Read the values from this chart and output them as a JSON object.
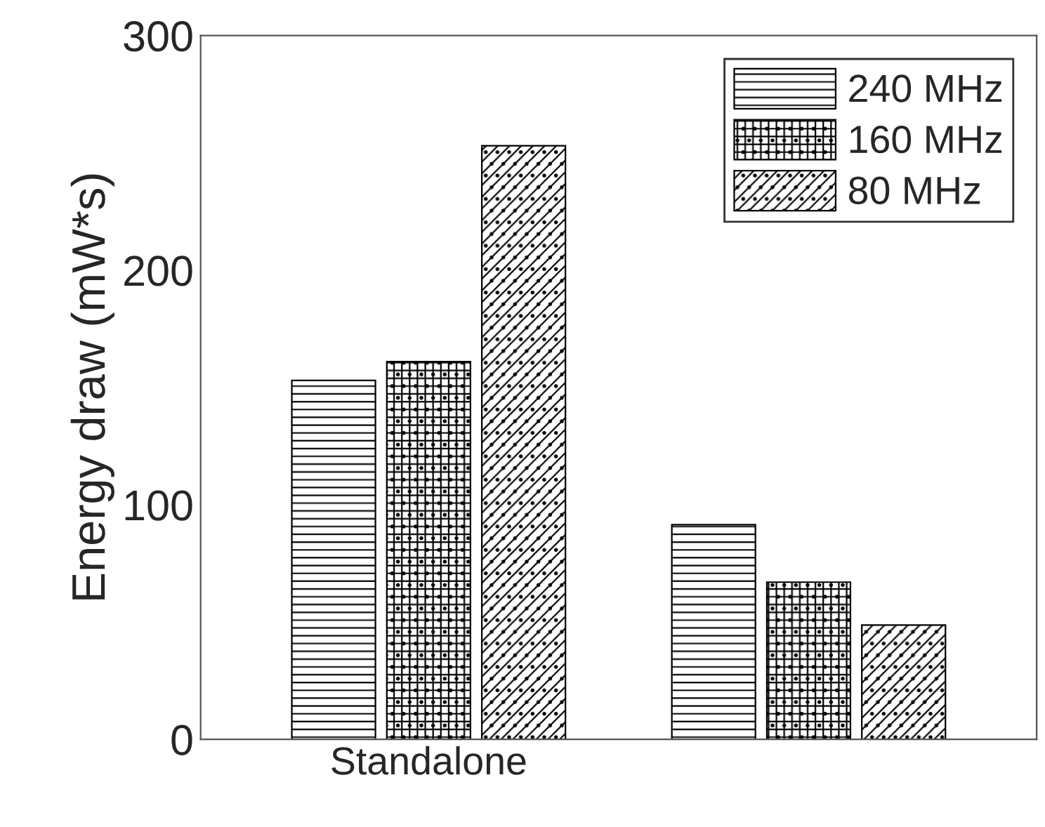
{
  "chart_data": {
    "type": "bar",
    "ylabel": "Energy draw (mW*s)",
    "categories": [
      "Standalone",
      null
    ],
    "series": [
      {
        "name": "240 MHz",
        "color": "#000000",
        "values": [
          153,
          91.5
        ]
      },
      {
        "name": "160 MHz",
        "color": "#000000",
        "values": [
          161,
          67
        ]
      },
      {
        "name": "80 MHz",
        "color": "#000000",
        "values": [
          253,
          48.7
        ]
      }
    ],
    "ylim": [
      0,
      300
    ],
    "yticks": [
      0,
      100,
      200,
      300
    ],
    "grid": false,
    "legend": "top right"
  }
}
